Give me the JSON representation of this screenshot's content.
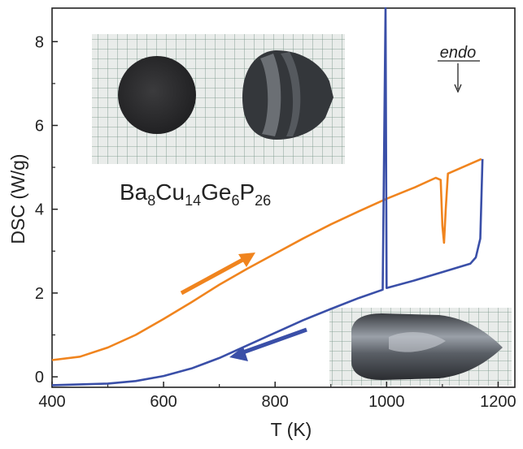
{
  "chart_data": {
    "type": "line",
    "xlabel": "T (K)",
    "ylabel": "DSC (W/g)",
    "xlim": [
      400,
      1230
    ],
    "ylim": [
      -0.25,
      8.8
    ],
    "x_ticks": [
      400,
      600,
      800,
      1000,
      1200
    ],
    "y_ticks": [
      0,
      2,
      4,
      6,
      8
    ],
    "grid": false,
    "series": [
      {
        "color": "#f0841e",
        "direction": "heating",
        "points": [
          [
            400,
            0.4
          ],
          [
            450,
            0.48
          ],
          [
            500,
            0.7
          ],
          [
            550,
            1.0
          ],
          [
            600,
            1.38
          ],
          [
            650,
            1.78
          ],
          [
            700,
            2.2
          ],
          [
            750,
            2.58
          ],
          [
            800,
            2.94
          ],
          [
            850,
            3.3
          ],
          [
            900,
            3.64
          ],
          [
            950,
            3.95
          ],
          [
            1000,
            4.25
          ],
          [
            1050,
            4.52
          ],
          [
            1088,
            4.75
          ],
          [
            1097,
            4.7
          ],
          [
            1100,
            3.6
          ],
          [
            1103,
            3.2
          ],
          [
            1106,
            4.0
          ],
          [
            1110,
            4.85
          ],
          [
            1170,
            5.2
          ]
        ]
      },
      {
        "color": "#3a4fa8",
        "direction": "cooling",
        "points": [
          [
            1172,
            5.2
          ],
          [
            1168,
            3.3
          ],
          [
            1160,
            2.85
          ],
          [
            1150,
            2.7
          ],
          [
            1100,
            2.5
          ],
          [
            1050,
            2.3
          ],
          [
            1000,
            2.12
          ],
          [
            998,
            8.8
          ],
          [
            993,
            2.08
          ],
          [
            950,
            1.88
          ],
          [
            900,
            1.62
          ],
          [
            850,
            1.35
          ],
          [
            800,
            1.05
          ],
          [
            750,
            0.75
          ],
          [
            700,
            0.45
          ],
          [
            650,
            0.2
          ],
          [
            600,
            0.02
          ],
          [
            550,
            -0.1
          ],
          [
            500,
            -0.16
          ],
          [
            450,
            -0.18
          ],
          [
            400,
            -0.2
          ]
        ]
      }
    ]
  },
  "annotations": {
    "compound": {
      "base": "Ba",
      "s1": "8",
      "e2": "Cu",
      "s2": "14",
      "e3": "Ge",
      "s3": "6",
      "e4": "P",
      "s4": "26"
    },
    "endo_label": "endo",
    "heating_arrow_color": "#f0841e",
    "cooling_arrow_color": "#3a4fa8"
  },
  "photos": [
    {
      "name": "pellet-and-cut-sample-photo",
      "subject": "two dark cylindrical samples on graph paper"
    },
    {
      "name": "ingot-photo",
      "subject": "bullet-shaped metallic ingot on graph paper"
    }
  ]
}
